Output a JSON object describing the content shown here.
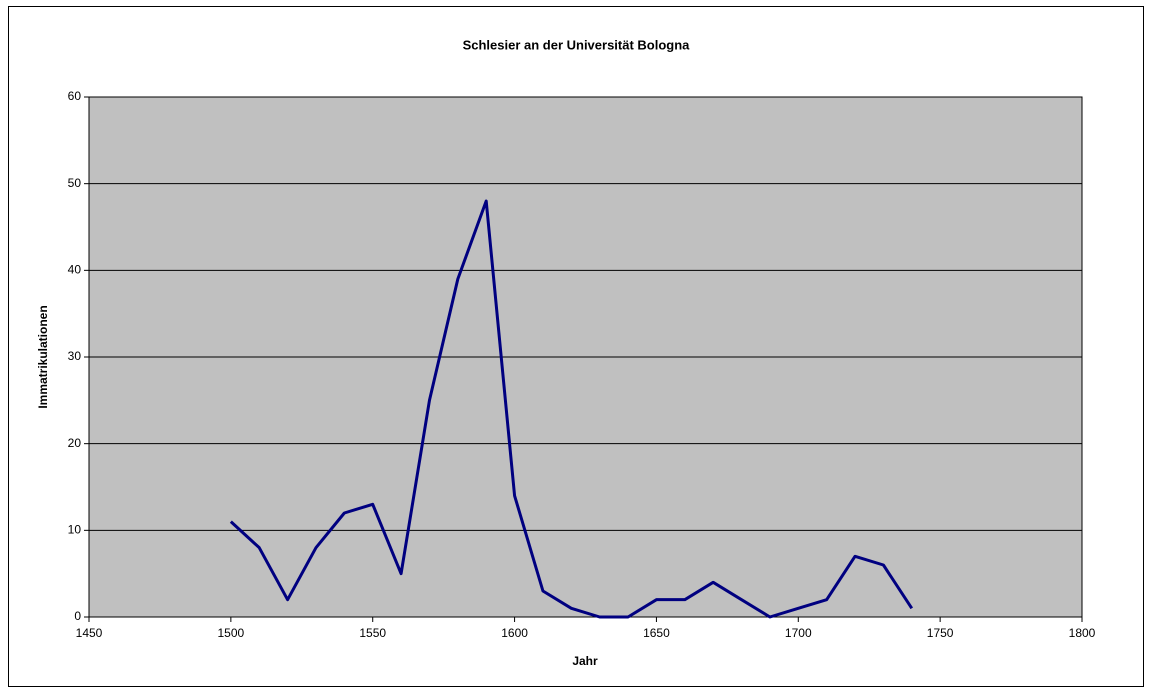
{
  "chart_data": {
    "type": "line",
    "title": "Schlesier an der Universität Bologna",
    "x_label": "Jahr",
    "y_label": "Immatrikulationen",
    "x": [
      1500,
      1510,
      1520,
      1530,
      1540,
      1550,
      1560,
      1570,
      1580,
      1590,
      1600,
      1610,
      1620,
      1630,
      1640,
      1650,
      1660,
      1670,
      1680,
      1690,
      1700,
      1710,
      1720,
      1730,
      1740
    ],
    "values": [
      11,
      8,
      2,
      8,
      12,
      13,
      5,
      25,
      39,
      48,
      14,
      3,
      1,
      0,
      0,
      2,
      2,
      4,
      2,
      0,
      1,
      2,
      7,
      6,
      1
    ],
    "color": "#000080",
    "xlim": [
      1450,
      1800
    ],
    "xticks": [
      1450,
      1500,
      1550,
      1600,
      1650,
      1700,
      1750,
      1800
    ],
    "ylim": [
      0,
      60
    ],
    "yticks": [
      0,
      10,
      20,
      30,
      40,
      50,
      60
    ],
    "grid": true
  }
}
